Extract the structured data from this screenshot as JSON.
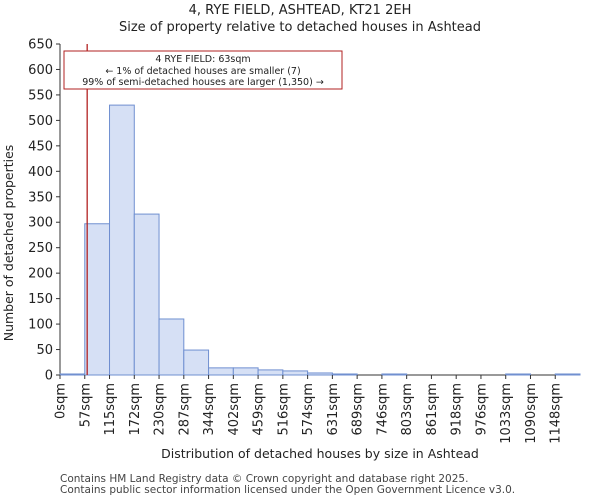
{
  "chart_data": {
    "type": "bar",
    "title": "4, RYE FIELD, ASHTEAD, KT21 2EH",
    "subtitle": "Size of property relative to detached houses in Ashtead",
    "xlabel": "Distribution of detached houses by size in Ashtead",
    "ylabel": "Number of detached properties",
    "ylim": [
      0,
      650
    ],
    "yticks": [
      0,
      50,
      100,
      150,
      200,
      250,
      300,
      350,
      400,
      450,
      500,
      550,
      600,
      650
    ],
    "categories": [
      "0sqm",
      "57sqm",
      "115sqm",
      "172sqm",
      "230sqm",
      "287sqm",
      "344sqm",
      "402sqm",
      "459sqm",
      "516sqm",
      "574sqm",
      "631sqm",
      "689sqm",
      "746sqm",
      "803sqm",
      "861sqm",
      "918sqm",
      "976sqm",
      "1033sqm",
      "1090sqm",
      "1148sqm"
    ],
    "values": [
      2,
      297,
      530,
      316,
      110,
      49,
      14,
      14,
      10,
      8,
      4,
      2,
      0,
      2,
      0,
      0,
      0,
      0,
      2,
      0,
      2
    ],
    "marker": {
      "value": 63,
      "label": "4 RYE FIELD: 63sqm",
      "color": "#b22222"
    },
    "annotation": {
      "line1": "4 RYE FIELD: 63sqm",
      "line2": "← 1% of detached houses are smaller (7)",
      "line3": "99% of semi-detached houses are larger (1,350) →"
    },
    "bar_color": "#d6e0f5",
    "bar_edge_color": "#6f8fd0"
  },
  "footer": {
    "line1": "Contains HM Land Registry data © Crown copyright and database right 2025.",
    "line2": "Contains public sector information licensed under the Open Government Licence v3.0."
  }
}
